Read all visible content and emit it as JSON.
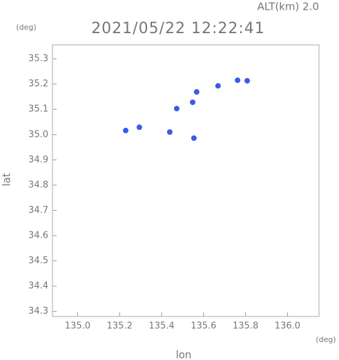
{
  "chart_data": {
    "type": "scatter",
    "annotation": "ALT(km) 2.0",
    "title": "2021/05/22 12:22:41",
    "y_unit": "(deg)",
    "x_unit": "(deg)",
    "ylabel": "lat",
    "xlabel": "lon",
    "color": "#3a5ae8",
    "x": [
      135.229,
      135.294,
      135.439,
      135.554,
      135.472,
      135.548,
      135.567,
      135.669,
      135.762,
      135.808
    ],
    "y": [
      35.016,
      35.029,
      35.01,
      34.986,
      35.103,
      35.128,
      35.169,
      35.193,
      35.215,
      35.213
    ],
    "xlim": [
      134.88,
      136.15
    ],
    "ylim": [
      34.28,
      35.355
    ],
    "xticks": [
      {
        "value": 135,
        "label": "135.0"
      },
      135.2,
      135.4,
      135.6,
      135.8,
      {
        "value": 136,
        "label": "136.0"
      }
    ],
    "yticks": [
      34.3,
      34.4,
      34.5,
      34.6,
      34.7,
      34.8,
      34.9,
      {
        "value": 35,
        "label": "35.0"
      },
      35.1,
      35.2,
      35.3
    ]
  }
}
